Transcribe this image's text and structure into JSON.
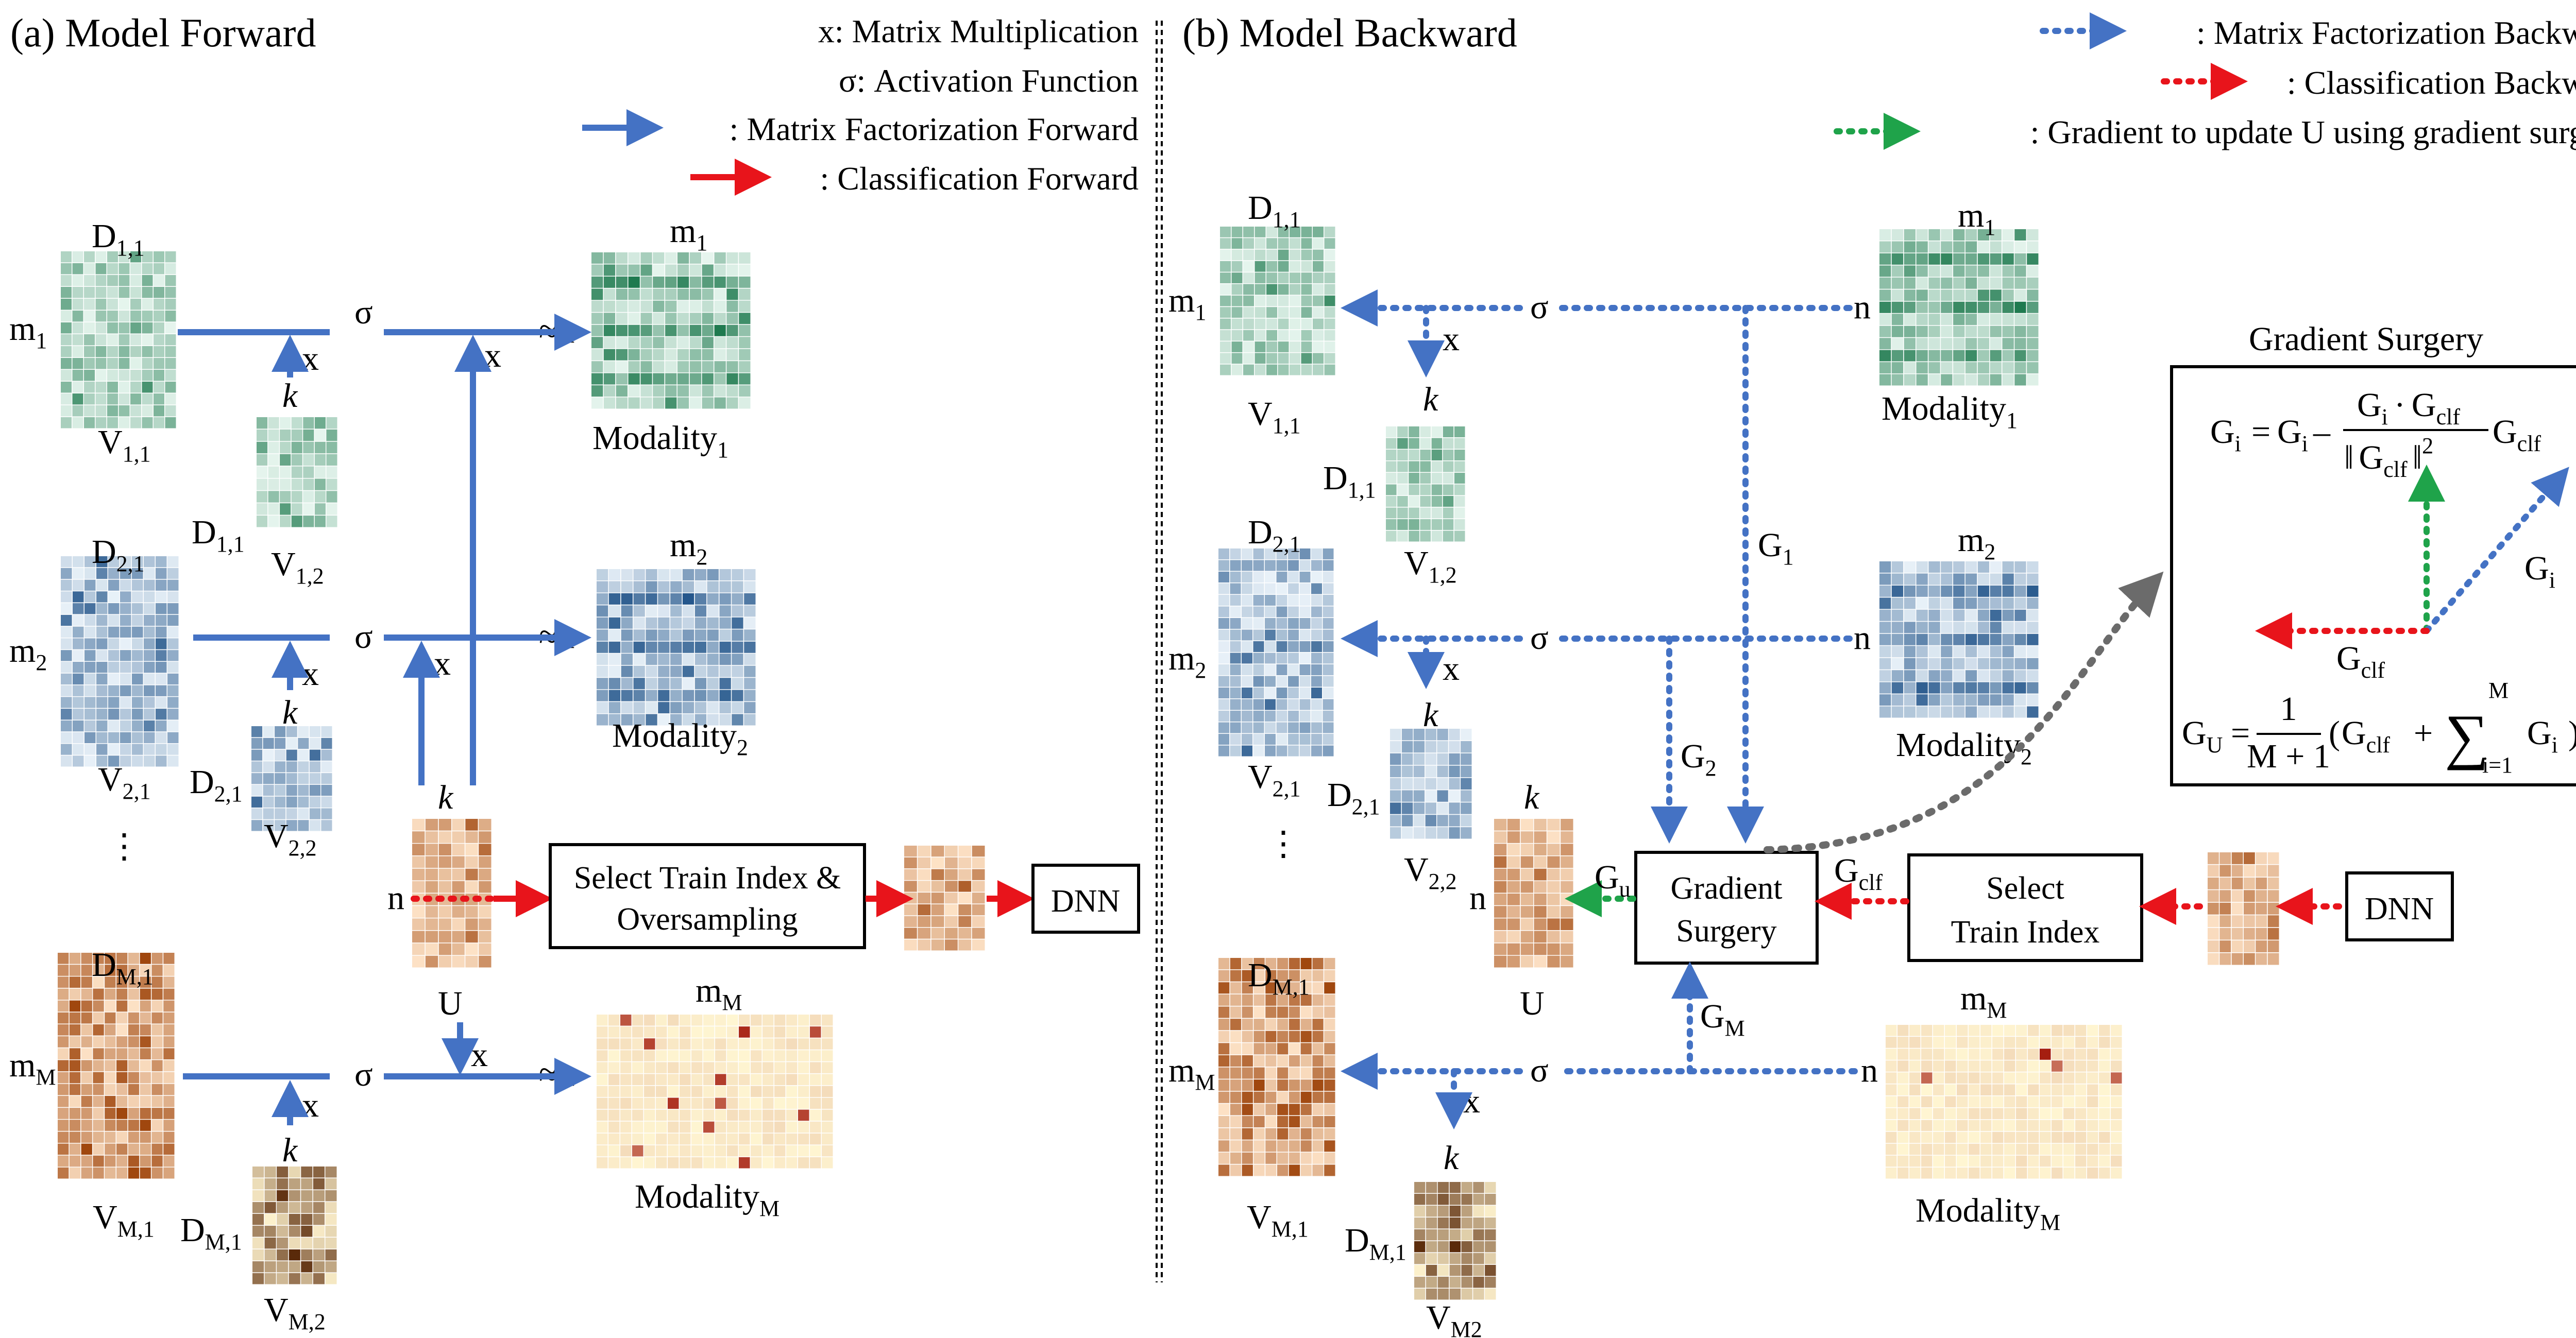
{
  "panel_a": {
    "title": "(a) Model Forward",
    "legend": {
      "mult": "x: Matrix Multiplication",
      "act": "σ: Activation Function",
      "mf_forward": ": Matrix Factorization Forward",
      "clf_forward": ": Classification Forward"
    },
    "labels": {
      "D": "D",
      "V": "V",
      "m": "m",
      "n": "n",
      "k": "k",
      "U": "U",
      "x": "x",
      "sigma": "σ",
      "approx_n": "≈n",
      "dots": "⋮",
      "modality": "Modality",
      "sub_11": "1,1",
      "sub_12": "1,2",
      "sub_21": "2,1",
      "sub_22": "2,2",
      "sub_M1": "M,1",
      "sub_M2": "M,2",
      "sub_1": "1",
      "sub_2": "2",
      "sub_M": "M"
    },
    "select_box_line1": "Select Train Index &",
    "select_box_line2": "Oversampling",
    "dnn": "DNN"
  },
  "panel_b": {
    "title": "(b) Model Backward",
    "legend": {
      "mf_backward": ": Matrix Factorization Backward",
      "clf_backward": ": Classification Backward",
      "grad_update": ": Gradient to update U using gradient surgery"
    },
    "labels": {
      "G": "G",
      "sub_u": "u",
      "sub_clf": "clf",
      "sub_1": "1",
      "sub_2": "2",
      "sub_M": "M",
      "sub_M2_nocomma": "M2"
    },
    "gs_box_line1": "Gradient",
    "gs_box_line2": "Surgery",
    "select_box_line1": "Select",
    "select_box_line2": "Train Index",
    "dnn": "DNN"
  },
  "inset": {
    "title": "Gradient Surgery",
    "gi": "G",
    "sub_i": "i",
    "sub_clf": "clf",
    "sub_U": "U",
    "eq_equals": "=",
    "eq_minus": "–",
    "eq_dot": "·",
    "norm_open": "‖",
    "norm_close": "‖",
    "sq": "2",
    "frac_one": "1",
    "frac_den": "M + 1",
    "paren_open": "(",
    "paren_close": ")",
    "plus": "+",
    "sum": "∑",
    "sum_top": "M",
    "sum_bottom": "i=1"
  },
  "colors": {
    "green_dark": "#1f7a4f",
    "green_light": "#e6f5ee",
    "blue_dark": "#1b4f86",
    "blue_light": "#e8f1f8",
    "orange_dark": "#a0470e",
    "orange_light": "#fde2c6",
    "yellow_dark": "#a51d0f",
    "yellow_light": "#fff6d2",
    "arrow_blue": "#4472C4",
    "arrow_red": "#E8141B",
    "arrow_green": "#1FA34A"
  }
}
